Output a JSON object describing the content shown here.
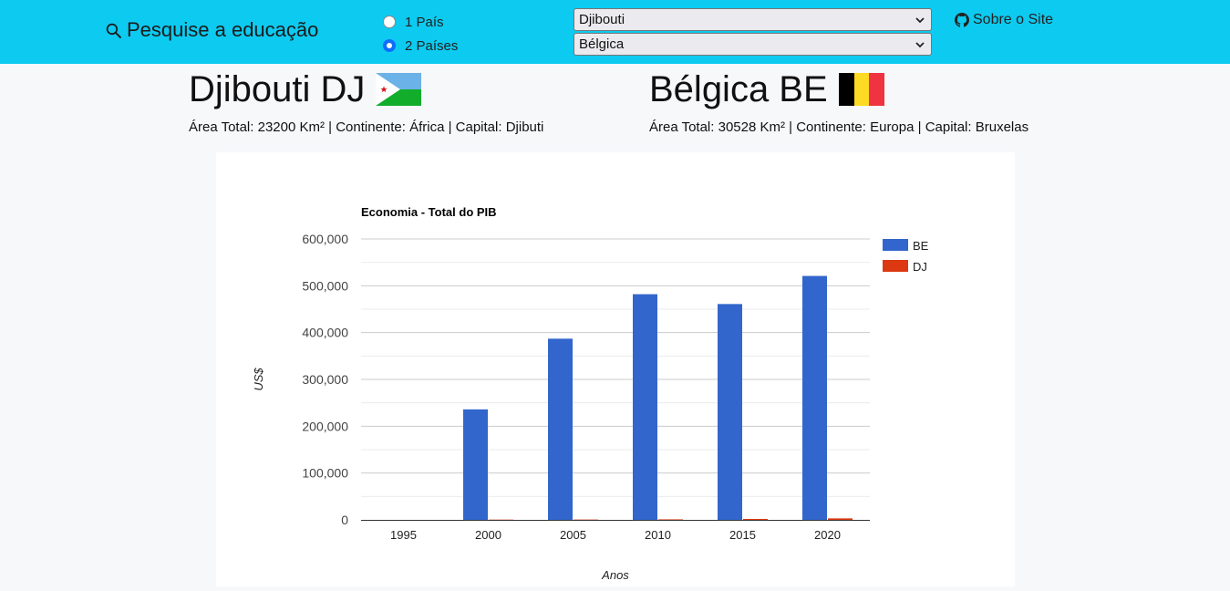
{
  "header": {
    "brand": "Pesquise a educação",
    "mode_options": [
      {
        "label": "1 País",
        "checked": false
      },
      {
        "label": "2 Países",
        "checked": true
      }
    ],
    "select_country_1": "Djibouti",
    "select_country_2": "Bélgica",
    "about_label": "Sobre o Site",
    "accent_color": "#0dcaf0"
  },
  "countries": [
    {
      "title": "Djibouti DJ",
      "info": "Área Total: 23200 Km² | Continente: África | Capital: Djibuti",
      "flag": "djibouti-flag"
    },
    {
      "title": "Bélgica BE",
      "info": "Área Total: 30528 Km² | Continente: Europa | Capital: Bruxelas",
      "flag": "belgium-flag"
    }
  ],
  "chart_data": {
    "type": "bar",
    "title": "Economia - Total do PIB",
    "xlabel": "Anos",
    "ylabel": "US$",
    "categories": [
      "1995",
      "2000",
      "2005",
      "2010",
      "2015",
      "2020"
    ],
    "ylim": [
      0,
      600000
    ],
    "yticks": [
      0,
      100000,
      200000,
      300000,
      400000,
      500000,
      600000
    ],
    "ytick_labels": [
      "0",
      "100,000",
      "200,000",
      "300,000",
      "400,000",
      "500,000",
      "600,000"
    ],
    "grid": true,
    "legend_position": "right",
    "series": [
      {
        "name": "BE",
        "color": "#3366cc",
        "values": [
          null,
          236000,
          387000,
          482000,
          461000,
          521000
        ]
      },
      {
        "name": "DJ",
        "color": "#dc3912",
        "values": [
          null,
          550,
          700,
          1100,
          2000,
          3200
        ]
      }
    ]
  }
}
